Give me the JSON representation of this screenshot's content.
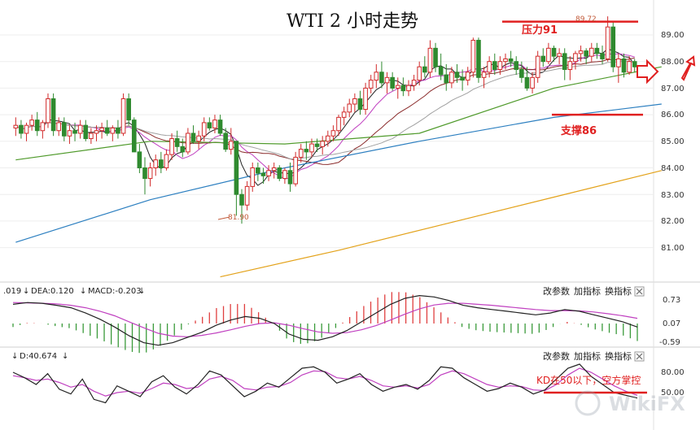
{
  "chart_data": [
    {
      "type": "candlestick",
      "title": "WTI 2 小时走势",
      "ylim": [
        80.0,
        89.9
      ],
      "yticks": [
        "89.00",
        "88.00",
        "87.00",
        "86.00",
        "85.00",
        "84.00",
        "83.00",
        "82.00",
        "81.00"
      ],
      "candles_ohlc": [
        [
          85.5,
          85.9,
          85.2,
          85.6
        ],
        [
          85.6,
          85.8,
          85.1,
          85.3
        ],
        [
          85.3,
          85.7,
          85.0,
          85.6
        ],
        [
          85.6,
          86.0,
          85.4,
          85.8
        ],
        [
          85.8,
          86.1,
          85.2,
          85.4
        ],
        [
          85.4,
          85.8,
          85.1,
          85.7
        ],
        [
          85.7,
          86.8,
          85.5,
          86.6
        ],
        [
          86.6,
          86.8,
          85.2,
          85.4
        ],
        [
          85.4,
          85.9,
          85.2,
          85.7
        ],
        [
          85.7,
          85.9,
          85.0,
          85.2
        ],
        [
          85.2,
          85.6,
          84.9,
          85.4
        ],
        [
          85.4,
          85.7,
          85.0,
          85.3
        ],
        [
          85.3,
          85.8,
          85.1,
          85.6
        ],
        [
          85.6,
          85.8,
          85.0,
          85.1
        ],
        [
          85.1,
          85.5,
          84.9,
          85.3
        ],
        [
          85.3,
          85.6,
          85.0,
          85.4
        ],
        [
          85.4,
          85.7,
          85.1,
          85.5
        ],
        [
          85.5,
          85.8,
          85.2,
          85.3
        ],
        [
          85.3,
          85.6,
          85.0,
          85.5
        ],
        [
          85.5,
          85.8,
          85.1,
          85.3
        ],
        [
          85.3,
          86.8,
          85.2,
          86.6
        ],
        [
          86.6,
          86.8,
          85.6,
          85.8
        ],
        [
          85.8,
          85.9,
          84.6,
          84.6
        ],
        [
          84.6,
          84.9,
          83.8,
          84.0
        ],
        [
          84.0,
          84.4,
          83.0,
          83.6
        ],
        [
          83.6,
          84.2,
          83.3,
          84.0
        ],
        [
          84.0,
          84.5,
          83.7,
          84.3
        ],
        [
          84.3,
          84.6,
          83.8,
          84.0
        ],
        [
          84.0,
          84.7,
          83.9,
          84.5
        ],
        [
          84.5,
          85.3,
          84.3,
          85.1
        ],
        [
          85.1,
          85.4,
          84.6,
          84.8
        ],
        [
          84.8,
          85.1,
          84.4,
          84.6
        ],
        [
          84.6,
          85.5,
          84.5,
          85.3
        ],
        [
          85.3,
          85.6,
          84.9,
          85.0
        ],
        [
          85.0,
          85.4,
          84.7,
          85.2
        ],
        [
          85.2,
          85.9,
          85.0,
          85.7
        ],
        [
          85.7,
          85.9,
          85.4,
          85.5
        ],
        [
          85.5,
          86.0,
          85.3,
          85.8
        ],
        [
          85.8,
          86.0,
          85.2,
          85.3
        ],
        [
          85.3,
          85.5,
          84.6,
          84.7
        ],
        [
          84.7,
          85.5,
          84.5,
          85.0
        ],
        [
          85.0,
          84.8,
          82.2,
          83.0
        ],
        [
          83.0,
          83.2,
          81.9,
          82.6
        ],
        [
          82.6,
          83.5,
          82.4,
          83.3
        ],
        [
          83.3,
          84.2,
          83.1,
          84.0
        ],
        [
          84.0,
          84.2,
          83.5,
          83.8
        ],
        [
          83.8,
          84.0,
          83.4,
          83.7
        ],
        [
          83.7,
          84.1,
          83.5,
          83.9
        ],
        [
          83.9,
          84.2,
          83.6,
          84.0
        ],
        [
          84.0,
          84.1,
          83.5,
          83.6
        ],
        [
          83.6,
          84.0,
          83.4,
          83.9
        ],
        [
          83.9,
          84.2,
          83.1,
          83.4
        ],
        [
          83.4,
          84.6,
          83.3,
          84.4
        ],
        [
          84.4,
          84.9,
          84.2,
          84.7
        ],
        [
          84.7,
          85.0,
          84.3,
          84.6
        ],
        [
          84.6,
          85.1,
          84.4,
          84.9
        ],
        [
          84.9,
          85.1,
          84.6,
          84.8
        ],
        [
          84.8,
          85.2,
          84.5,
          85.0
        ],
        [
          85.0,
          85.4,
          84.8,
          85.2
        ],
        [
          85.2,
          85.6,
          85.0,
          85.4
        ],
        [
          85.4,
          86.0,
          85.2,
          85.9
        ],
        [
          85.9,
          86.3,
          85.6,
          86.1
        ],
        [
          86.1,
          86.6,
          85.9,
          86.4
        ],
        [
          86.4,
          86.8,
          86.1,
          86.6
        ],
        [
          86.6,
          86.9,
          86.0,
          86.2
        ],
        [
          86.2,
          87.2,
          86.0,
          87.0
        ],
        [
          87.0,
          87.5,
          86.8,
          87.3
        ],
        [
          87.3,
          87.9,
          87.0,
          87.6
        ],
        [
          87.6,
          88.0,
          87.0,
          87.2
        ],
        [
          87.2,
          87.6,
          86.8,
          87.4
        ],
        [
          87.4,
          87.6,
          86.9,
          87.0
        ],
        [
          87.0,
          87.4,
          86.6,
          87.1
        ],
        [
          87.1,
          87.4,
          86.7,
          86.9
        ],
        [
          86.9,
          87.3,
          86.7,
          87.1
        ],
        [
          87.1,
          87.5,
          86.9,
          87.3
        ],
        [
          87.3,
          88.0,
          87.1,
          87.8
        ],
        [
          87.8,
          88.2,
          87.4,
          87.6
        ],
        [
          87.6,
          88.8,
          87.4,
          88.5
        ],
        [
          88.5,
          88.7,
          87.6,
          87.8
        ],
        [
          87.8,
          88.3,
          87.3,
          87.5
        ],
        [
          87.5,
          87.9,
          86.9,
          87.2
        ],
        [
          87.2,
          87.8,
          87.0,
          87.6
        ],
        [
          87.6,
          87.9,
          87.2,
          87.4
        ],
        [
          87.4,
          87.7,
          86.9,
          87.3
        ],
        [
          87.3,
          87.8,
          87.1,
          87.6
        ],
        [
          87.6,
          88.9,
          87.4,
          88.8
        ],
        [
          88.8,
          88.9,
          87.2,
          87.4
        ],
        [
          87.4,
          87.8,
          87.0,
          87.6
        ],
        [
          87.6,
          88.2,
          87.4,
          88.0
        ],
        [
          88.0,
          88.3,
          87.5,
          87.7
        ],
        [
          87.7,
          88.2,
          87.5,
          88.0
        ],
        [
          88.0,
          88.3,
          87.7,
          88.1
        ],
        [
          88.1,
          88.4,
          87.8,
          88.0
        ],
        [
          88.0,
          88.2,
          87.5,
          87.7
        ],
        [
          87.7,
          88.0,
          87.2,
          87.4
        ],
        [
          87.4,
          87.8,
          86.9,
          87.0
        ],
        [
          87.0,
          87.6,
          86.8,
          87.4
        ],
        [
          87.4,
          88.4,
          87.2,
          88.2
        ],
        [
          88.2,
          88.5,
          87.8,
          88.0
        ],
        [
          88.0,
          88.7,
          87.9,
          88.5
        ],
        [
          88.5,
          88.6,
          88.0,
          88.2
        ],
        [
          88.2,
          88.5,
          87.9,
          88.3
        ],
        [
          88.3,
          88.5,
          87.3,
          87.7
        ],
        [
          87.7,
          88.2,
          87.3,
          88.0
        ],
        [
          88.0,
          88.4,
          87.7,
          88.3
        ],
        [
          88.3,
          88.6,
          88.0,
          88.4
        ],
        [
          88.4,
          88.5,
          87.9,
          88.2
        ],
        [
          88.2,
          88.7,
          88.0,
          88.5
        ],
        [
          88.5,
          88.7,
          88.1,
          88.3
        ],
        [
          88.3,
          88.6,
          87.9,
          88.1
        ],
        [
          88.1,
          89.7,
          88.0,
          89.3
        ],
        [
          89.3,
          89.5,
          87.6,
          87.8
        ],
        [
          87.8,
          88.3,
          87.2,
          88.1
        ],
        [
          88.1,
          88.3,
          87.4,
          87.6
        ],
        [
          87.6,
          88.2,
          87.5,
          88.0
        ],
        [
          88.0,
          88.1,
          87.6,
          87.8
        ]
      ],
      "moving_averages": [
        {
          "color": "#4f9a2b",
          "x": [
            0,
            25,
            50,
            75,
            100,
            120
          ],
          "y": [
            84.3,
            85.0,
            84.9,
            85.3,
            87.0,
            87.8
          ]
        },
        {
          "color": "#2c7fc0",
          "x": [
            0,
            25,
            50,
            75,
            100,
            120
          ],
          "y": [
            81.2,
            82.8,
            84.0,
            85.0,
            85.9,
            86.4
          ]
        },
        {
          "color": "#e3a21a",
          "x": [
            38,
            60,
            80,
            100,
            120
          ],
          "y": [
            79.9,
            80.9,
            81.9,
            82.9,
            83.9
          ]
        }
      ],
      "annotations": {
        "high_label": "89.72",
        "low_label": "81.90",
        "resistance_label": "压力91",
        "resistance_value": 89.5,
        "support_label": "支撑86",
        "support_value": 86.0
      }
    },
    {
      "type": "line",
      "name": "MACD",
      "legend": {
        "dif": ".019",
        "dea": "DEA:0.120",
        "macd": "MACD:-0.203"
      },
      "ylim": [
        -0.85,
        0.95
      ],
      "yticks": [
        "0.73",
        "0.07",
        "-0.59"
      ],
      "dif": [
        0.55,
        0.6,
        0.58,
        0.52,
        0.45,
        0.3,
        0.12,
        -0.1,
        -0.35,
        -0.55,
        -0.62,
        -0.55,
        -0.4,
        -0.25,
        -0.05,
        0.1,
        0.2,
        0.15,
        0.0,
        -0.3,
        -0.45,
        -0.48,
        -0.38,
        -0.2,
        0.05,
        0.3,
        0.55,
        0.72,
        0.8,
        0.76,
        0.66,
        0.52,
        0.45,
        0.4,
        0.35,
        0.3,
        0.25,
        0.3,
        0.4,
        0.35,
        0.25,
        0.15,
        0.05,
        -0.1
      ],
      "dea": [
        0.6,
        0.59,
        0.58,
        0.56,
        0.52,
        0.45,
        0.35,
        0.22,
        0.05,
        -0.12,
        -0.28,
        -0.36,
        -0.38,
        -0.34,
        -0.27,
        -0.18,
        -0.08,
        0.0,
        0.02,
        -0.05,
        -0.15,
        -0.24,
        -0.28,
        -0.26,
        -0.18,
        -0.06,
        0.1,
        0.27,
        0.42,
        0.53,
        0.58,
        0.58,
        0.55,
        0.52,
        0.48,
        0.44,
        0.4,
        0.37,
        0.37,
        0.36,
        0.33,
        0.28,
        0.22,
        0.15
      ],
      "buttons": [
        "改参数",
        "加指标",
        "换指标"
      ]
    },
    {
      "type": "line",
      "name": "KD",
      "legend": {
        "d": "D:40.674"
      },
      "ylim": [
        30,
        100
      ],
      "yticks": [
        "80.00",
        "50.00"
      ],
      "k": [
        80,
        72,
        62,
        78,
        55,
        48,
        70,
        40,
        35,
        60,
        52,
        44,
        66,
        75,
        58,
        48,
        62,
        82,
        76,
        60,
        44,
        52,
        64,
        58,
        72,
        86,
        88,
        80,
        64,
        70,
        78,
        62,
        52,
        58,
        62,
        55,
        68,
        88,
        86,
        72,
        62,
        52,
        56,
        64,
        58,
        48,
        54,
        70,
        86,
        92,
        74,
        62,
        50,
        46,
        42
      ],
      "d": [
        75,
        72,
        68,
        70,
        65,
        58,
        62,
        52,
        45,
        50,
        52,
        49,
        56,
        64,
        62,
        56,
        58,
        70,
        74,
        68,
        56,
        54,
        58,
        59,
        65,
        76,
        82,
        81,
        72,
        70,
        74,
        68,
        60,
        58,
        60,
        57,
        62,
        76,
        82,
        78,
        70,
        62,
        58,
        60,
        59,
        54,
        53,
        62,
        76,
        86,
        80,
        70,
        60,
        52,
        46
      ],
      "buttons": [
        "改参数",
        "加指标",
        "换指标"
      ],
      "annotation": "KD在50以下，空方掌控"
    }
  ],
  "watermark": "WikiFX"
}
